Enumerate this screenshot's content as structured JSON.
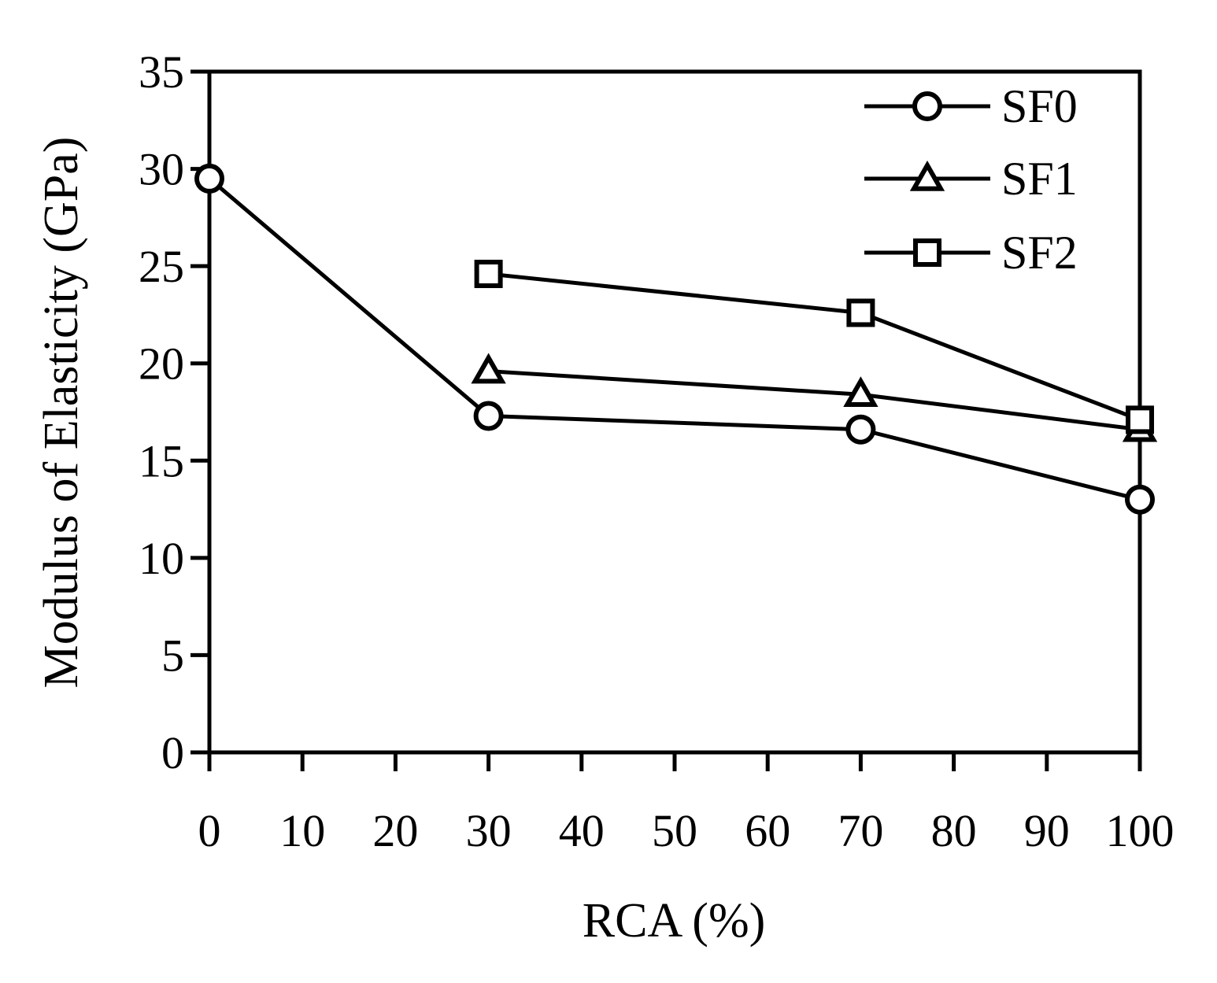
{
  "chart_data": {
    "type": "line",
    "title": "",
    "xlabel": "RCA (%)",
    "ylabel": "Modulus of Elasticity (GPa)",
    "xlim": [
      0,
      100
    ],
    "ylim": [
      0,
      35
    ],
    "xticks": [
      0,
      10,
      20,
      30,
      40,
      50,
      60,
      70,
      80,
      90,
      100
    ],
    "yticks": [
      0,
      5,
      10,
      15,
      20,
      25,
      30,
      35
    ],
    "xtick_labels": [
      "0",
      "10",
      "20",
      "30",
      "40",
      "50",
      "60",
      "70",
      "80",
      "90",
      "100"
    ],
    "ytick_labels": [
      "0",
      "5",
      "10",
      "15",
      "20",
      "25",
      "30",
      "35"
    ],
    "grid": false,
    "legend_position": "top-right",
    "series": [
      {
        "name": "SF0",
        "marker": "circle",
        "x": [
          0,
          30,
          70,
          100
        ],
        "y": [
          29.5,
          17.3,
          16.6,
          13.0
        ]
      },
      {
        "name": "SF1",
        "marker": "triangle",
        "x": [
          30,
          70,
          100
        ],
        "y": [
          19.6,
          18.4,
          16.6
        ]
      },
      {
        "name": "SF2",
        "marker": "square",
        "x": [
          30,
          70,
          100
        ],
        "y": [
          24.6,
          22.6,
          17.1
        ]
      }
    ]
  },
  "colors": {
    "line": "#000000",
    "marker_fill": "#ffffff"
  }
}
